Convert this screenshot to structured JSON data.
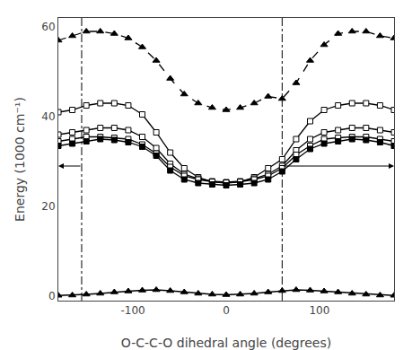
{
  "chart_data": {
    "type": "line",
    "x": [
      -180,
      -165,
      -150,
      -135,
      -120,
      -105,
      -90,
      -75,
      -60,
      -45,
      -30,
      -15,
      0,
      15,
      30,
      45,
      60,
      75,
      90,
      105,
      120,
      135,
      150,
      165,
      180
    ],
    "series": [
      {
        "color": "#000000",
        "marker": "triangle",
        "line_style": "solid",
        "values": [
          0.15,
          0.2,
          0.4,
          0.6,
          0.9,
          1.1,
          1.3,
          1.4,
          1.2,
          0.9,
          0.6,
          0.4,
          0.3,
          0.4,
          0.6,
          0.9,
          1.2,
          1.4,
          1.3,
          1.1,
          0.9,
          0.6,
          0.4,
          0.2,
          0.15
        ]
      },
      {
        "color": "#000000",
        "marker": "square-open",
        "line_style": "solid",
        "values": [
          41.0,
          41.5,
          42.5,
          43.0,
          43.0,
          42.5,
          40.5,
          36.5,
          32.0,
          28.5,
          26.5,
          25.5,
          25.2,
          25.5,
          26.5,
          28.5,
          30.5,
          35.0,
          39.0,
          41.5,
          42.5,
          43.0,
          43.0,
          42.5,
          41.5
        ]
      },
      {
        "color": "#000000",
        "marker": "square-open",
        "line_style": "solid",
        "values": [
          36.0,
          36.5,
          37.0,
          37.5,
          37.5,
          37.0,
          35.5,
          33.0,
          29.5,
          27.2,
          26.2,
          25.6,
          25.4,
          25.6,
          26.2,
          27.2,
          29.0,
          32.5,
          35.0,
          36.5,
          37.0,
          37.5,
          37.5,
          37.0,
          36.5
        ]
      },
      {
        "color": "#000000",
        "marker": "square-open",
        "line_style": "solid",
        "values": [
          34.5,
          35.0,
          35.5,
          35.5,
          35.3,
          35.0,
          33.8,
          31.8,
          28.8,
          26.8,
          26.0,
          25.5,
          25.3,
          25.5,
          26.0,
          26.8,
          28.5,
          31.5,
          33.5,
          35.0,
          35.3,
          35.5,
          35.5,
          35.0,
          34.5
        ]
      },
      {
        "color": "#000000",
        "marker": "square",
        "line_style": "solid",
        "values": [
          33.5,
          34.0,
          34.5,
          35.0,
          34.8,
          34.3,
          33.3,
          31.3,
          28.0,
          26.0,
          25.2,
          24.9,
          24.7,
          24.9,
          25.2,
          26.0,
          27.8,
          30.5,
          32.8,
          34.0,
          34.5,
          35.0,
          34.8,
          34.3,
          33.5
        ]
      },
      {
        "color": "#000000",
        "marker": "triangle",
        "line_style": "dashed",
        "values": [
          57.0,
          58.0,
          59.0,
          59.0,
          58.5,
          57.5,
          55.5,
          52.5,
          48.5,
          45.0,
          43.0,
          42.0,
          41.5,
          42.0,
          43.0,
          44.5,
          44.0,
          47.5,
          52.5,
          56.0,
          58.5,
          59.0,
          59.0,
          58.0,
          57.5
        ]
      }
    ],
    "vlines": [
      -155,
      60
    ],
    "arrows": [
      {
        "x_start": -155,
        "x_end": -180,
        "y": 29.0
      },
      {
        "x_start": 60,
        "x_end": 180,
        "y": 29.0
      }
    ],
    "xlim": [
      -180,
      180
    ],
    "ylim": [
      -1,
      62
    ],
    "xticks": [
      -100,
      0,
      100
    ],
    "yticks": [
      0,
      20,
      40,
      60
    ],
    "xlabel": "O-C-C-O dihedral angle (degrees)",
    "ylabel": "Energy (1000 cm⁻¹)",
    "grid": false
  }
}
